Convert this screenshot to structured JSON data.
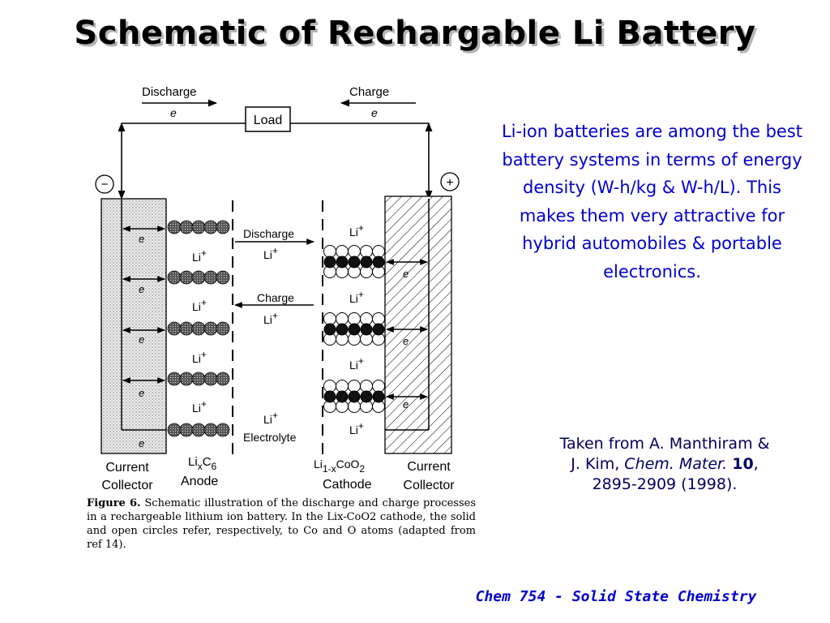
{
  "title": "Schematic of Rechargable Li Battery",
  "diagram": {
    "top_discharge": "Discharge",
    "top_charge": "Charge",
    "e": "e",
    "load": "Load",
    "minus": "−",
    "plus": "+",
    "li_plus": "Li+",
    "middle_discharge": "Discharge",
    "middle_charge": "Charge",
    "electrolyte": "Electrolyte",
    "left_collector_line1": "Current",
    "left_collector_line2": "Collector",
    "anode_formula": "LixC6",
    "anode_label": "Anode",
    "cathode_formula": "Li1-xCoO2",
    "cathode_label": "Cathode",
    "right_collector_line1": "Current",
    "right_collector_line2": "Collector"
  },
  "caption": {
    "figure_label": "Figure 6.",
    "text": "Schematic illustration of the discharge and charge processes in a rechargeable lithium ion battery. In the Lix-CoO2 cathode, the solid and open circles refer, respectively, to Co and O atoms (adapted from ref 14)."
  },
  "info_text": "Li-ion batteries are among the best battery systems in terms of energy density (W-h/kg & W-h/L).  This makes them very attractive for hybrid automobiles & portable electronics.",
  "citation": {
    "line1": "Taken from A. Manthiram &",
    "line2_plain": "J. Kim, ",
    "journal": "Chem. Mater.",
    "volume": "10",
    "pages": "2895-2909 (1998)."
  },
  "footer": "Chem 754 - Solid State Chemistry",
  "colors": {
    "info_text": "#0000cc",
    "footer": "#0000cc",
    "citation": "#000060"
  }
}
